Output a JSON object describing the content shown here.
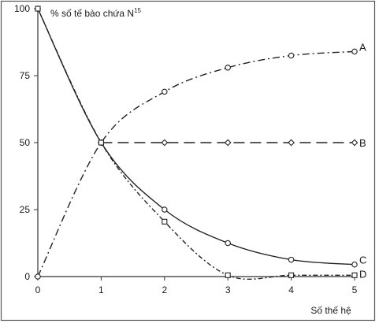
{
  "chart_data": {
    "type": "line",
    "title": "",
    "ylabel": "% số tế bào chứa N",
    "ylabel_superscript": "15",
    "xlabel": "Số thế hệ",
    "xlim": [
      0,
      5
    ],
    "ylim": [
      0,
      100
    ],
    "x_ticks": [
      "0",
      "1",
      "2",
      "3",
      "4",
      "5"
    ],
    "y_ticks": [
      "0",
      "25",
      "50",
      "75",
      "100"
    ],
    "grid": false,
    "series": [
      {
        "name": "A",
        "line_style": "dash-dot",
        "marker": "circle",
        "x": [
          0,
          1,
          2,
          3,
          4,
          5
        ],
        "y": [
          0,
          50,
          69,
          78,
          82.5,
          84
        ]
      },
      {
        "name": "B",
        "line_style": "long-dash",
        "marker": "diamond",
        "x": [
          1,
          2,
          3,
          4,
          5
        ],
        "y": [
          50,
          50,
          50,
          50,
          50
        ]
      },
      {
        "name": "C",
        "line_style": "solid",
        "marker": "circle",
        "x": [
          0,
          1,
          2,
          3,
          4,
          5
        ],
        "y": [
          100,
          50,
          25,
          12.5,
          6.3,
          4.5
        ]
      },
      {
        "name": "D",
        "line_style": "dotted-dash",
        "marker": "square",
        "x": [
          0,
          1,
          2,
          3,
          4,
          5
        ],
        "y": [
          100,
          50,
          20.5,
          0.5,
          0.5,
          0.5
        ]
      }
    ]
  },
  "colors": {
    "line": "#222222",
    "axis": "#333333",
    "frame": "#555555",
    "marker_fill": "#ffffff"
  }
}
